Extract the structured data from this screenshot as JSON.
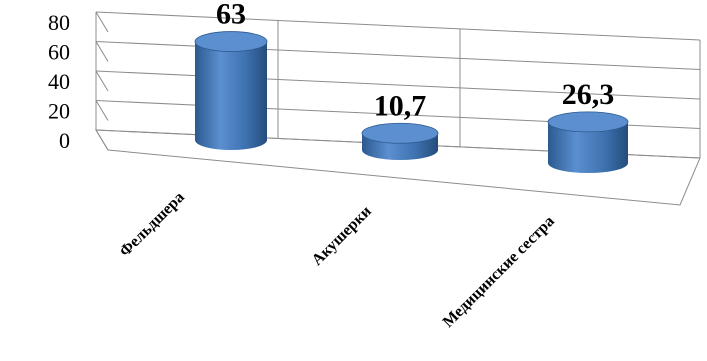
{
  "chart_data": {
    "type": "bar",
    "style": "3d-cylinder",
    "categories": [
      "Фельдшера",
      "Акушерки",
      "Медицинские сестра"
    ],
    "values": [
      63,
      10.7,
      26.3
    ],
    "data_labels": [
      "63",
      "10,7",
      "26,3"
    ],
    "yticks": [
      "0",
      "20",
      "40",
      "60",
      "80"
    ],
    "ylim": [
      0,
      80
    ],
    "grid": true,
    "legend": false,
    "colors": {
      "bar": "#4a7ebb",
      "bar_dark": "#2c5a8f",
      "bar_top": "#5b8fd0"
    }
  }
}
